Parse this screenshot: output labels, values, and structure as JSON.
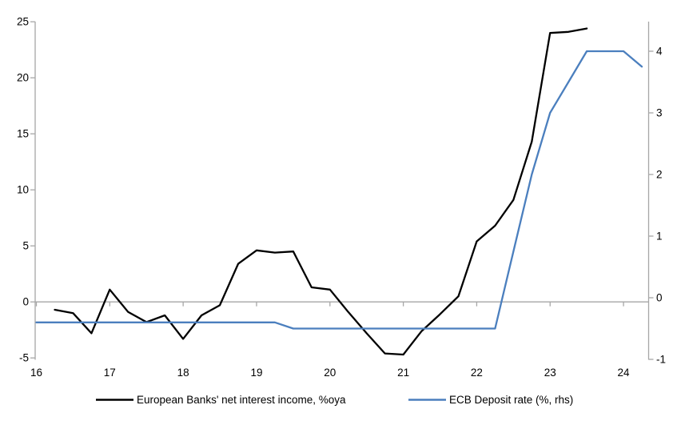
{
  "chart_data": {
    "type": "line",
    "title": "",
    "frequency": "quarterly",
    "x_axis": {
      "tick_labels": [
        "16",
        "17",
        "18",
        "19",
        "20",
        "21",
        "22",
        "23",
        "24"
      ],
      "range_years": [
        2016,
        2024.5
      ]
    },
    "left_axis": {
      "tick_labels": [
        "25",
        "20",
        "15",
        "10",
        "5",
        "0",
        "-5"
      ],
      "tick_values": [
        25,
        20,
        15,
        10,
        5,
        0,
        -5
      ],
      "range": [
        -5,
        25
      ]
    },
    "right_axis": {
      "tick_labels": [
        "4",
        "3",
        "2",
        "1",
        "0",
        "-1"
      ],
      "tick_values": [
        4,
        3,
        2,
        1,
        0,
        -1
      ],
      "range": [
        -1,
        4.5
      ]
    },
    "series": [
      {
        "name": "European Banks' net interest income, %oya",
        "axis": "left",
        "color": "#000000",
        "start_quarter": "2016Q2",
        "values": [
          -0.7,
          -1.0,
          -2.8,
          1.1,
          -0.9,
          -1.8,
          -1.2,
          -3.3,
          -1.2,
          -0.3,
          3.4,
          4.6,
          4.4,
          4.5,
          1.3,
          1.1,
          -0.9,
          -2.8,
          -4.6,
          -4.7,
          -2.6,
          -1.1,
          0.5,
          5.4,
          6.8,
          9.1,
          14.3,
          24.0,
          24.1,
          24.4
        ]
      },
      {
        "name": "ECB Deposit rate (%, rhs)",
        "axis": "right",
        "color": "#4b7fbe",
        "start_quarter": "2016Q1",
        "values": [
          -0.4,
          -0.4,
          -0.4,
          -0.4,
          -0.4,
          -0.4,
          -0.4,
          -0.4,
          -0.4,
          -0.4,
          -0.4,
          -0.4,
          -0.4,
          -0.4,
          -0.5,
          -0.5,
          -0.5,
          -0.5,
          -0.5,
          -0.5,
          -0.5,
          -0.5,
          -0.5,
          -0.5,
          -0.5,
          -0.5,
          0.75,
          2.0,
          3.0,
          3.5,
          4.0,
          4.0,
          4.0,
          3.75
        ]
      }
    ],
    "legend_position": "bottom",
    "grid": "zero-line-only"
  },
  "colors": {
    "axis": "#a6a6a6",
    "zero_line": "#a6a6a6",
    "text": "#000000",
    "background": "#ffffff"
  }
}
